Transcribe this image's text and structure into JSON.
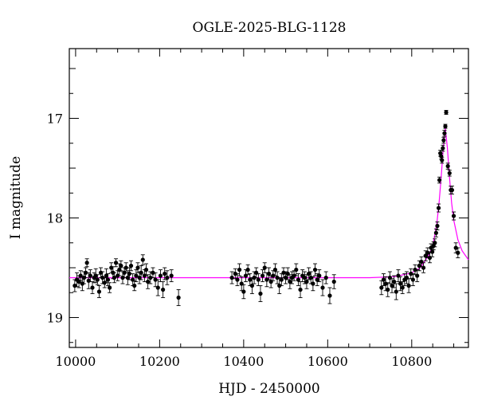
{
  "chart_data": {
    "type": "scatter",
    "title": "OGLE-2025-BLG-1128",
    "xlabel": "HJD - 2450000",
    "ylabel": "I magnitude",
    "xlim": [
      9985,
      10935
    ],
    "ylim": [
      19.3,
      16.3
    ],
    "y_inverted": true,
    "x_ticks": [
      10000,
      10200,
      10400,
      10600,
      10800
    ],
    "y_ticks": [
      17,
      18,
      19
    ],
    "grid": false,
    "point_color": "#000000",
    "model_color": "#ff00ff",
    "model": {
      "baseline_mag": 18.6,
      "peak_hjd": 10880,
      "peak_mag": 17.1,
      "points": [
        [
          9985,
          18.6
        ],
        [
          10700,
          18.6
        ],
        [
          10760,
          18.59
        ],
        [
          10800,
          18.55
        ],
        [
          10820,
          18.5
        ],
        [
          10840,
          18.38
        ],
        [
          10850,
          18.28
        ],
        [
          10860,
          18.05
        ],
        [
          10865,
          17.85
        ],
        [
          10870,
          17.6
        ],
        [
          10875,
          17.3
        ],
        [
          10880,
          17.1
        ],
        [
          10885,
          17.3
        ],
        [
          10890,
          17.6
        ],
        [
          10895,
          17.85
        ],
        [
          10900,
          18.02
        ],
        [
          10910,
          18.22
        ],
        [
          10920,
          18.33
        ],
        [
          10935,
          18.42
        ]
      ]
    },
    "series": [
      {
        "name": "",
        "x": [
          9998,
          10003,
          10008,
          10012,
          10016,
          10020,
          10024,
          10027,
          10031,
          10035,
          10040,
          10044,
          10048,
          10052,
          10056,
          10060,
          10064,
          10069,
          10073,
          10077,
          10081,
          10085,
          10089,
          10092,
          10096,
          10100,
          10104,
          10108,
          10112,
          10116,
          10120,
          10124,
          10128,
          10132,
          10136,
          10140,
          10144,
          10148,
          10152,
          10156,
          10160,
          10164,
          10168,
          10172,
          10178,
          10184,
          10190,
          10196,
          10202,
          10208,
          10212,
          10218,
          10228,
          10245,
          10372,
          10380,
          10385,
          10390,
          10395,
          10400,
          10405,
          10410,
          10415,
          10420,
          10425,
          10430,
          10435,
          10440,
          10445,
          10450,
          10455,
          10460,
          10465,
          10470,
          10475,
          10480,
          10485,
          10490,
          10495,
          10500,
          10505,
          10510,
          10515,
          10520,
          10525,
          10530,
          10535,
          10540,
          10545,
          10550,
          10555,
          10560,
          10565,
          10570,
          10575,
          10580,
          10588,
          10596,
          10605,
          10615,
          10728,
          10733,
          10738,
          10743,
          10748,
          10753,
          10758,
          10763,
          10768,
          10773,
          10778,
          10783,
          10788,
          10793,
          10798,
          10803,
          10808,
          10813,
          10818,
          10823,
          10828,
          10833,
          10838,
          10843,
          10846,
          10849,
          10852,
          10855,
          10858,
          10861,
          10864,
          10866,
          10868,
          10870,
          10872,
          10874,
          10876,
          10878,
          10880,
          10882,
          10886,
          10890,
          10893,
          10896,
          10900,
          10905,
          10910
        ],
        "y": [
          18.68,
          18.62,
          18.64,
          18.58,
          18.66,
          18.6,
          18.55,
          18.45,
          18.63,
          18.58,
          18.7,
          18.6,
          18.58,
          18.62,
          18.74,
          18.55,
          18.6,
          18.65,
          18.58,
          18.62,
          18.7,
          18.5,
          18.55,
          18.6,
          18.45,
          18.58,
          18.52,
          18.48,
          18.6,
          18.55,
          18.5,
          18.6,
          18.56,
          18.48,
          18.62,
          18.68,
          18.58,
          18.5,
          18.6,
          18.55,
          18.42,
          18.58,
          18.52,
          18.64,
          18.6,
          18.55,
          18.62,
          18.7,
          18.58,
          18.72,
          18.56,
          18.6,
          18.58,
          18.8,
          18.6,
          18.56,
          18.62,
          18.52,
          18.66,
          18.74,
          18.58,
          18.52,
          18.62,
          18.68,
          18.6,
          18.55,
          18.62,
          18.76,
          18.58,
          18.5,
          18.62,
          18.56,
          18.64,
          18.58,
          18.52,
          18.6,
          18.68,
          18.62,
          18.55,
          18.6,
          18.56,
          18.64,
          18.6,
          18.58,
          18.52,
          18.62,
          18.72,
          18.58,
          18.6,
          18.64,
          18.56,
          18.6,
          18.66,
          18.52,
          18.62,
          18.58,
          18.7,
          18.6,
          18.78,
          18.64,
          18.7,
          18.62,
          18.66,
          18.72,
          18.6,
          18.68,
          18.64,
          18.74,
          18.58,
          18.66,
          18.7,
          18.62,
          18.6,
          18.68,
          18.56,
          18.62,
          18.52,
          18.58,
          18.48,
          18.44,
          18.5,
          18.38,
          18.35,
          18.4,
          18.3,
          18.34,
          18.28,
          18.25,
          18.15,
          18.08,
          17.9,
          17.62,
          17.35,
          17.38,
          17.42,
          17.3,
          17.22,
          17.15,
          17.08,
          16.94,
          17.48,
          17.55,
          17.72,
          17.72,
          17.98,
          18.3,
          18.35
        ],
        "err": [
          0.06,
          0.07,
          0.06,
          0.05,
          0.07,
          0.06,
          0.05,
          0.04,
          0.08,
          0.06,
          0.06,
          0.05,
          0.07,
          0.05,
          0.06,
          0.05,
          0.06,
          0.05,
          0.07,
          0.06,
          0.05,
          0.05,
          0.06,
          0.05,
          0.04,
          0.05,
          0.06,
          0.05,
          0.06,
          0.05,
          0.05,
          0.07,
          0.06,
          0.05,
          0.06,
          0.05,
          0.06,
          0.05,
          0.06,
          0.07,
          0.05,
          0.06,
          0.06,
          0.07,
          0.06,
          0.05,
          0.07,
          0.08,
          0.06,
          0.08,
          0.06,
          0.07,
          0.06,
          0.08,
          0.06,
          0.05,
          0.06,
          0.06,
          0.07,
          0.07,
          0.06,
          0.05,
          0.06,
          0.08,
          0.06,
          0.05,
          0.06,
          0.08,
          0.06,
          0.05,
          0.07,
          0.06,
          0.06,
          0.05,
          0.06,
          0.06,
          0.08,
          0.06,
          0.05,
          0.06,
          0.06,
          0.07,
          0.06,
          0.05,
          0.06,
          0.06,
          0.08,
          0.06,
          0.06,
          0.07,
          0.06,
          0.06,
          0.07,
          0.06,
          0.06,
          0.06,
          0.08,
          0.06,
          0.08,
          0.07,
          0.07,
          0.06,
          0.07,
          0.07,
          0.06,
          0.07,
          0.06,
          0.08,
          0.06,
          0.07,
          0.06,
          0.06,
          0.06,
          0.07,
          0.05,
          0.06,
          0.05,
          0.06,
          0.05,
          0.05,
          0.05,
          0.05,
          0.05,
          0.05,
          0.04,
          0.05,
          0.04,
          0.04,
          0.04,
          0.04,
          0.04,
          0.03,
          0.03,
          0.03,
          0.03,
          0.03,
          0.03,
          0.03,
          0.02,
          0.02,
          0.03,
          0.03,
          0.04,
          0.04,
          0.04,
          0.05,
          0.05
        ]
      }
    ]
  }
}
